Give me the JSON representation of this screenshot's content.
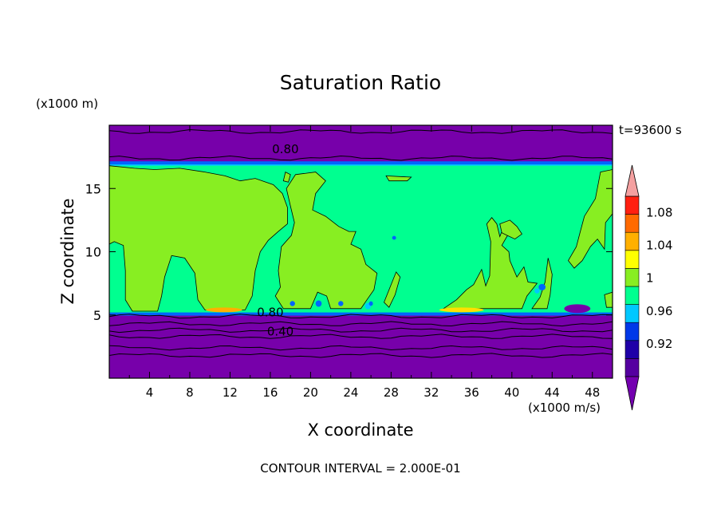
{
  "chart_data": {
    "type": "contour",
    "title": "Saturation Ratio",
    "xlabel": "X coordinate",
    "ylabel": "Z coordinate",
    "x_unit_label": "(x1000 m/s)",
    "y_unit_label": "(x1000 m)",
    "time_label": "t=93600 s",
    "footer": "CONTOUR INTERVAL = 2.000E-01",
    "xlim": [
      0,
      50
    ],
    "ylim": [
      0,
      20
    ],
    "x_ticks": [
      4,
      8,
      12,
      16,
      20,
      24,
      28,
      32,
      36,
      40,
      44,
      48
    ],
    "y_ticks": [
      5,
      10,
      15
    ],
    "contour_labels": [
      {
        "text": "0.80",
        "x": 17.5,
        "z": 18.1
      },
      {
        "text": "0.80",
        "x": 16.0,
        "z": 5.2
      },
      {
        "text": "0.40",
        "x": 17.0,
        "z": 3.7
      }
    ],
    "colorbar": {
      "levels": [
        0.88,
        0.92,
        0.94,
        0.96,
        0.98,
        1.0,
        1.02,
        1.04,
        1.06,
        1.08,
        1.1
      ],
      "tick_labels": [
        "0.92",
        "0.96",
        "1",
        "1.04",
        "1.08"
      ],
      "tick_values": [
        0.92,
        0.96,
        1.0,
        1.04,
        1.08
      ],
      "colors": [
        "#5500a0",
        "#1f00a8",
        "#0038e8",
        "#00c8ff",
        "#00ff90",
        "#88ee22",
        "#ffff00",
        "#ffb000",
        "#ff6a00",
        "#ff2010"
      ],
      "over_color": "#f4a0a0",
      "under_color": "#7400b0"
    },
    "regions": {
      "background": "#7700aa",
      "moist_layer": {
        "z_bottom": 5.2,
        "z_top": 16.8,
        "fill": "#00ff90"
      },
      "supersaturated": {
        "fill": "#88ee22"
      },
      "saturation_band": {
        "fill": "#0066ff"
      }
    },
    "isolines_z": [
      1.8,
      2.4,
      3.3,
      3.8,
      4.3,
      4.9,
      17.4,
      19.5
    ]
  }
}
